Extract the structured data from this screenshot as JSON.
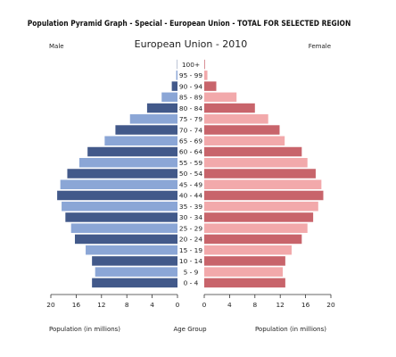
{
  "chart_data": {
    "type": "bar",
    "title": "Population Pyramid Graph - Special - European Union - TOTAL FOR SELECTED REGION",
    "subtitle": "European Union - 2010",
    "left_label": "Male",
    "right_label": "Female",
    "xlabel_left": "Population (in millions)",
    "xlabel_center": "Age Group",
    "xlabel_right": "Population (in millions)",
    "categories": [
      "0 - 4",
      "5 - 9",
      "10 - 14",
      "15 - 19",
      "20 - 24",
      "25 - 29",
      "30 - 34",
      "35 - 39",
      "40 - 44",
      "45 - 49",
      "50 - 54",
      "55 - 59",
      "60 - 64",
      "65 - 69",
      "70 - 74",
      "75 - 79",
      "80 - 84",
      "85 - 89",
      "90 - 94",
      "95 - 99",
      "100+"
    ],
    "series": [
      {
        "name": "Male",
        "values": [
          13.5,
          13.0,
          13.5,
          14.5,
          16.2,
          16.8,
          17.7,
          18.3,
          19.0,
          18.5,
          17.4,
          15.5,
          14.2,
          11.5,
          9.8,
          7.5,
          4.8,
          2.5,
          0.9,
          0.2,
          0.05
        ]
      },
      {
        "name": "Female",
        "values": [
          12.8,
          12.4,
          12.8,
          13.8,
          15.4,
          16.3,
          17.2,
          18.0,
          18.8,
          18.5,
          17.6,
          16.3,
          15.4,
          12.7,
          11.9,
          10.1,
          8.0,
          5.1,
          1.9,
          0.5,
          0.1
        ]
      }
    ],
    "xlim": [
      0,
      20
    ],
    "xticks": [
      20,
      16,
      12,
      8,
      4,
      0
    ],
    "colors": {
      "male_dark": "#42598a",
      "male_light": "#8ba6d6",
      "female_dark": "#c8646b",
      "female_light": "#f2a9ab"
    }
  }
}
